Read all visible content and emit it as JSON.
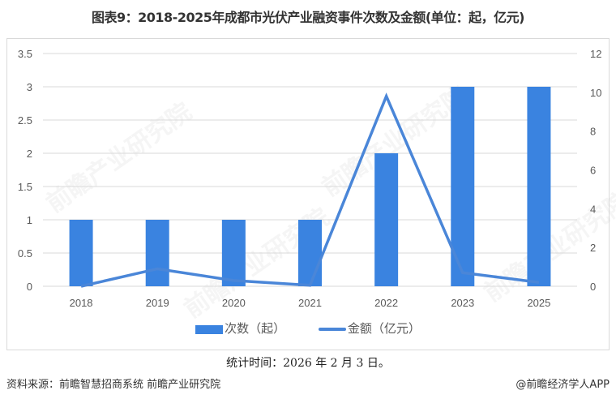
{
  "title": "图表9：2018-2025年成都市光伏产业融资事件次数及金额(单位：起，亿元)",
  "legend": {
    "bar_label": "次数（起）",
    "line_label": "金额（亿元）"
  },
  "stat_time": "统计时间：2026 年 2 月 3 日。",
  "source": "资料来源：前瞻智慧招商系统 前瞻产业研究院",
  "brand": "@前瞻经济学人APP",
  "watermark": "前瞻产业研究院",
  "colors": {
    "bar": "#3a83e0",
    "line": "#4a86d8",
    "grid": "#d9d9d9"
  },
  "chart_data": {
    "type": "bar",
    "title": "图表9：2018-2025年成都市光伏产业融资事件次数及金额(单位：起，亿元)",
    "categories": [
      "2018",
      "2019",
      "2020",
      "2021",
      "2022",
      "2023",
      "2025"
    ],
    "series": [
      {
        "name": "次数（起）",
        "type": "bar",
        "axis": "left",
        "values": [
          1,
          1,
          1,
          1,
          2,
          3,
          3
        ]
      },
      {
        "name": "金额（亿元）",
        "type": "line",
        "axis": "right",
        "values": [
          0.0,
          0.9,
          0.3,
          0.05,
          9.8,
          0.7,
          0.2
        ]
      }
    ],
    "y_left": {
      "ylim": [
        0,
        3.5
      ],
      "ticks": [
        "0",
        "0.5",
        "1",
        "1.5",
        "2",
        "2.5",
        "3",
        "3.5"
      ]
    },
    "y_right": {
      "ylim": [
        0,
        12
      ],
      "ticks": [
        "0",
        "2",
        "4",
        "6",
        "8",
        "10",
        "12"
      ]
    },
    "grid": true,
    "legend_position": "bottom"
  }
}
